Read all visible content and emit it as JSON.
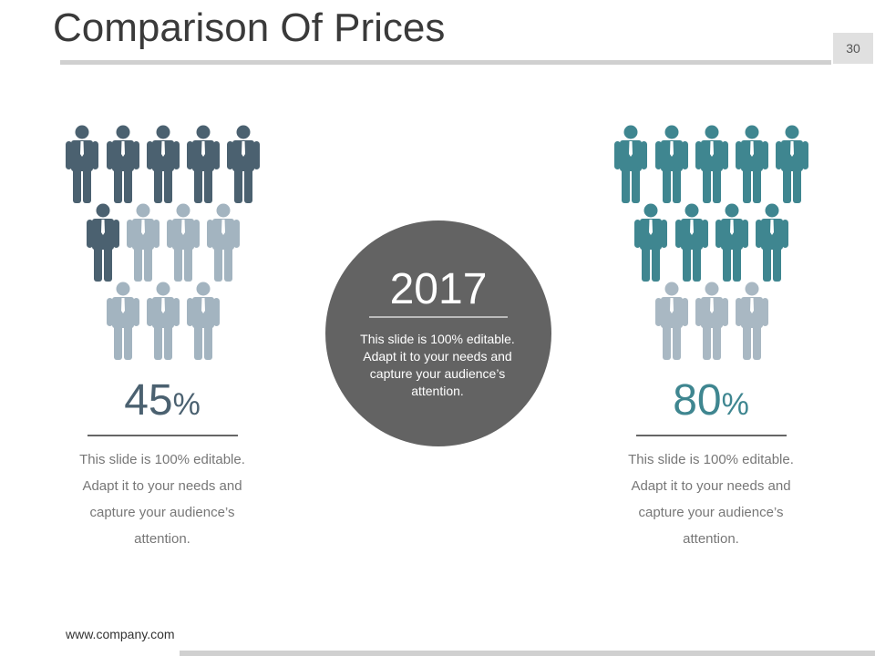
{
  "header": {
    "title": "Comparison Of Prices",
    "page_number": "30"
  },
  "center": {
    "year": "2017",
    "text": "This slide is 100% editable. Adapt it to your needs and capture your audience’s attention."
  },
  "panels": [
    {
      "value": "45",
      "unit": "%",
      "text": "This slide is 100% editable. Adapt it to your needs and capture your audience’s attention."
    },
    {
      "value": "80",
      "unit": "%",
      "text": "This slide is 100% editable. Adapt it to your needs and capture your audience’s attention."
    }
  ],
  "footer": {
    "url": "www.company.com"
  }
}
